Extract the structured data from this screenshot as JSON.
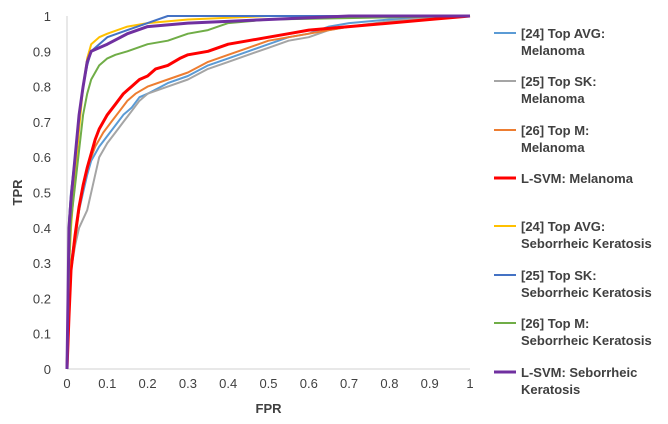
{
  "chart_data": {
    "type": "line",
    "title": "",
    "xlabel": "FPR",
    "ylabel": "TPR",
    "xlim": [
      0,
      1
    ],
    "ylim": [
      0,
      1
    ],
    "xticks": [
      "0",
      "0.1",
      "0.2",
      "0.3",
      "0.4",
      "0.5",
      "0.6",
      "0.7",
      "0.8",
      "0.9",
      "1"
    ],
    "yticks": [
      "0",
      "0.1",
      "0.2",
      "0.3",
      "0.4",
      "0.5",
      "0.6",
      "0.7",
      "0.8",
      "0.9",
      "1"
    ],
    "grid": false,
    "legend_position": "right",
    "series": [
      {
        "name": "[24] Top AVG: Melanoma",
        "legend_lines": [
          "[24] Top AVG:",
          "Melanoma"
        ],
        "color": "#5b9bd5",
        "points": [
          [
            0,
            0
          ],
          [
            0.005,
            0.2
          ],
          [
            0.01,
            0.3
          ],
          [
            0.02,
            0.38
          ],
          [
            0.03,
            0.45
          ],
          [
            0.04,
            0.5
          ],
          [
            0.05,
            0.55
          ],
          [
            0.06,
            0.59
          ],
          [
            0.08,
            0.63
          ],
          [
            0.1,
            0.66
          ],
          [
            0.12,
            0.69
          ],
          [
            0.14,
            0.72
          ],
          [
            0.16,
            0.74
          ],
          [
            0.18,
            0.77
          ],
          [
            0.2,
            0.78
          ],
          [
            0.25,
            0.81
          ],
          [
            0.3,
            0.83
          ],
          [
            0.35,
            0.86
          ],
          [
            0.4,
            0.88
          ],
          [
            0.45,
            0.9
          ],
          [
            0.5,
            0.92
          ],
          [
            0.55,
            0.94
          ],
          [
            0.6,
            0.95
          ],
          [
            0.65,
            0.97
          ],
          [
            0.7,
            0.98
          ],
          [
            0.8,
            0.99
          ],
          [
            0.9,
            0.995
          ],
          [
            1,
            1
          ]
        ]
      },
      {
        "name": "[25] Top SK: Melanoma",
        "legend_lines": [
          "[25] Top SK:",
          "Melanoma"
        ],
        "color": "#a5a5a5",
        "points": [
          [
            0,
            0
          ],
          [
            0.005,
            0.18
          ],
          [
            0.01,
            0.28
          ],
          [
            0.02,
            0.35
          ],
          [
            0.03,
            0.4
          ],
          [
            0.05,
            0.45
          ],
          [
            0.07,
            0.55
          ],
          [
            0.08,
            0.6
          ],
          [
            0.1,
            0.64
          ],
          [
            0.12,
            0.67
          ],
          [
            0.14,
            0.7
          ],
          [
            0.16,
            0.73
          ],
          [
            0.18,
            0.76
          ],
          [
            0.2,
            0.78
          ],
          [
            0.25,
            0.8
          ],
          [
            0.3,
            0.82
          ],
          [
            0.35,
            0.85
          ],
          [
            0.4,
            0.87
          ],
          [
            0.45,
            0.89
          ],
          [
            0.5,
            0.91
          ],
          [
            0.55,
            0.93
          ],
          [
            0.6,
            0.94
          ],
          [
            0.65,
            0.96
          ],
          [
            0.7,
            0.97
          ],
          [
            0.8,
            0.985
          ],
          [
            0.9,
            0.995
          ],
          [
            1,
            1
          ]
        ]
      },
      {
        "name": "[26] Top M: Melanoma",
        "legend_lines": [
          "[26] Top M:",
          "Melanoma"
        ],
        "color": "#ed7d31",
        "points": [
          [
            0,
            0
          ],
          [
            0.005,
            0.2
          ],
          [
            0.01,
            0.28
          ],
          [
            0.02,
            0.36
          ],
          [
            0.03,
            0.45
          ],
          [
            0.04,
            0.52
          ],
          [
            0.05,
            0.57
          ],
          [
            0.07,
            0.63
          ],
          [
            0.09,
            0.67
          ],
          [
            0.11,
            0.7
          ],
          [
            0.13,
            0.73
          ],
          [
            0.15,
            0.76
          ],
          [
            0.17,
            0.78
          ],
          [
            0.2,
            0.8
          ],
          [
            0.25,
            0.82
          ],
          [
            0.3,
            0.84
          ],
          [
            0.35,
            0.87
          ],
          [
            0.4,
            0.89
          ],
          [
            0.45,
            0.91
          ],
          [
            0.5,
            0.93
          ],
          [
            0.55,
            0.94
          ],
          [
            0.6,
            0.95
          ],
          [
            0.65,
            0.96
          ],
          [
            0.7,
            0.97
          ],
          [
            0.8,
            0.98
          ],
          [
            0.9,
            0.99
          ],
          [
            1,
            1
          ]
        ]
      },
      {
        "name": "L-SVM: Melanoma",
        "legend_lines": [
          "L-SVM: Melanoma"
        ],
        "color": "#ff0000",
        "points": [
          [
            0,
            0
          ],
          [
            0.005,
            0.15
          ],
          [
            0.01,
            0.28
          ],
          [
            0.02,
            0.38
          ],
          [
            0.03,
            0.46
          ],
          [
            0.04,
            0.52
          ],
          [
            0.05,
            0.57
          ],
          [
            0.06,
            0.61
          ],
          [
            0.07,
            0.65
          ],
          [
            0.08,
            0.68
          ],
          [
            0.1,
            0.72
          ],
          [
            0.12,
            0.75
          ],
          [
            0.14,
            0.78
          ],
          [
            0.16,
            0.8
          ],
          [
            0.18,
            0.82
          ],
          [
            0.2,
            0.83
          ],
          [
            0.22,
            0.85
          ],
          [
            0.25,
            0.86
          ],
          [
            0.28,
            0.88
          ],
          [
            0.3,
            0.89
          ],
          [
            0.35,
            0.9
          ],
          [
            0.4,
            0.92
          ],
          [
            0.45,
            0.93
          ],
          [
            0.5,
            0.94
          ],
          [
            0.55,
            0.95
          ],
          [
            0.6,
            0.96
          ],
          [
            0.7,
            0.97
          ],
          [
            0.8,
            0.98
          ],
          [
            0.9,
            0.99
          ],
          [
            1,
            1
          ]
        ]
      },
      {
        "name": "[24] Top AVG: Seborrheic Keratosis",
        "legend_lines": [
          "[24] Top AVG:",
          "Seborrheic Keratosis"
        ],
        "color": "#ffc000",
        "points": [
          [
            0,
            0
          ],
          [
            0.005,
            0.28
          ],
          [
            0.01,
            0.4
          ],
          [
            0.02,
            0.55
          ],
          [
            0.03,
            0.68
          ],
          [
            0.04,
            0.8
          ],
          [
            0.05,
            0.88
          ],
          [
            0.06,
            0.92
          ],
          [
            0.08,
            0.94
          ],
          [
            0.1,
            0.95
          ],
          [
            0.15,
            0.97
          ],
          [
            0.2,
            0.98
          ],
          [
            0.3,
            0.99
          ],
          [
            0.5,
            1
          ],
          [
            1,
            1
          ]
        ]
      },
      {
        "name": "[25] Top SK: Seborrheic Keratosis",
        "legend_lines": [
          "[25] Top SK:",
          "Seborrheic Keratosis"
        ],
        "color": "#4472c4",
        "points": [
          [
            0,
            0
          ],
          [
            0.005,
            0.42
          ],
          [
            0.01,
            0.5
          ],
          [
            0.02,
            0.6
          ],
          [
            0.03,
            0.72
          ],
          [
            0.04,
            0.8
          ],
          [
            0.05,
            0.86
          ],
          [
            0.06,
            0.9
          ],
          [
            0.08,
            0.92
          ],
          [
            0.1,
            0.94
          ],
          [
            0.15,
            0.96
          ],
          [
            0.2,
            0.98
          ],
          [
            0.25,
            1
          ],
          [
            1,
            1
          ]
        ]
      },
      {
        "name": "[26] Top M: Seborrheic Keratosis",
        "legend_lines": [
          "[26] Top M:",
          "Seborrheic Keratosis"
        ],
        "color": "#70ad47",
        "points": [
          [
            0,
            0
          ],
          [
            0.005,
            0.3
          ],
          [
            0.01,
            0.42
          ],
          [
            0.02,
            0.52
          ],
          [
            0.03,
            0.62
          ],
          [
            0.04,
            0.72
          ],
          [
            0.05,
            0.78
          ],
          [
            0.06,
            0.82
          ],
          [
            0.08,
            0.86
          ],
          [
            0.1,
            0.88
          ],
          [
            0.12,
            0.89
          ],
          [
            0.15,
            0.9
          ],
          [
            0.2,
            0.92
          ],
          [
            0.25,
            0.93
          ],
          [
            0.3,
            0.95
          ],
          [
            0.35,
            0.96
          ],
          [
            0.4,
            0.98
          ],
          [
            0.5,
            0.99
          ],
          [
            1,
            1
          ]
        ]
      },
      {
        "name": "L-SVM: Seborrheic Keratosis",
        "legend_lines": [
          "L-SVM: Seborrheic",
          "Keratosis"
        ],
        "color": "#7030a0",
        "points": [
          [
            0,
            0
          ],
          [
            0.005,
            0.4
          ],
          [
            0.01,
            0.48
          ],
          [
            0.02,
            0.6
          ],
          [
            0.03,
            0.72
          ],
          [
            0.04,
            0.8
          ],
          [
            0.05,
            0.87
          ],
          [
            0.06,
            0.9
          ],
          [
            0.08,
            0.91
          ],
          [
            0.1,
            0.92
          ],
          [
            0.15,
            0.95
          ],
          [
            0.2,
            0.97
          ],
          [
            0.3,
            0.98
          ],
          [
            0.5,
            0.99
          ],
          [
            0.7,
            1
          ],
          [
            1,
            1
          ]
        ]
      }
    ]
  }
}
